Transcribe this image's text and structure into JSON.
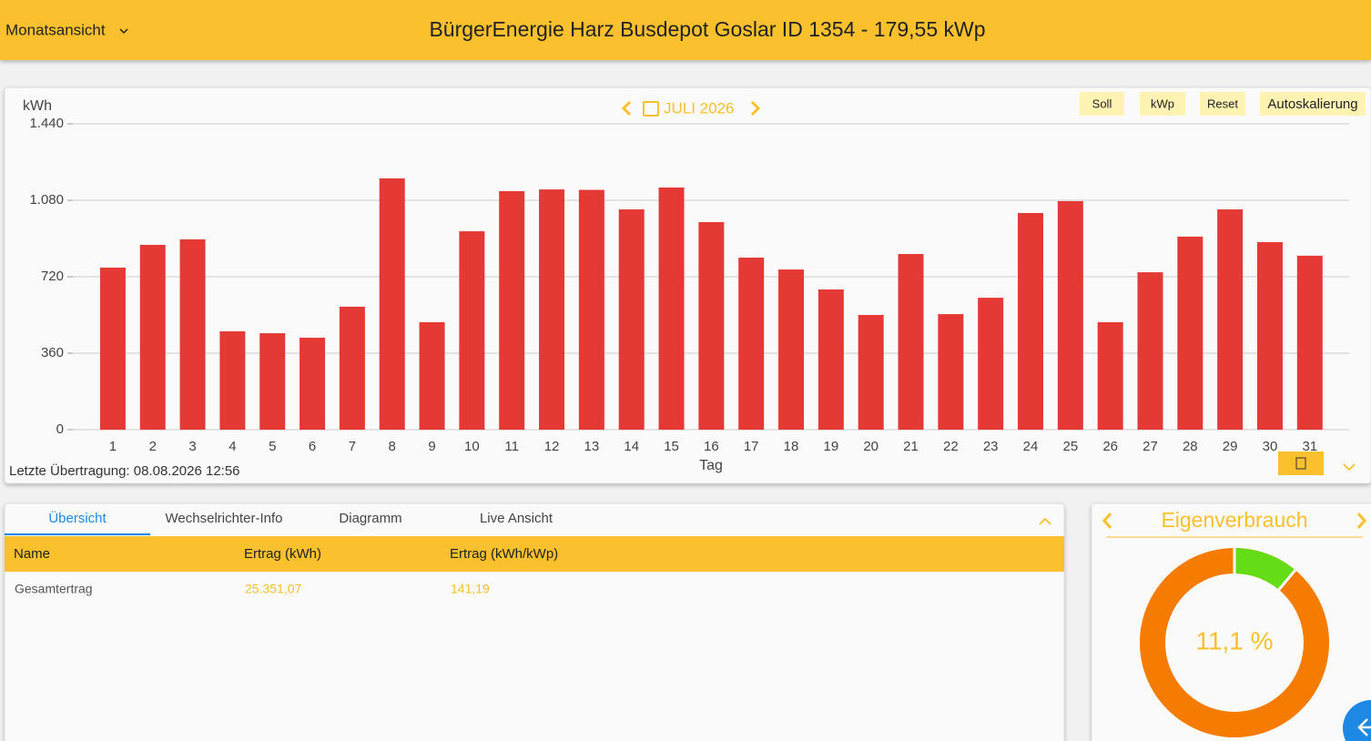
{
  "header": {
    "view_menu": "Monatsansicht",
    "title": "BürgerEnergie Harz Busdepot Goslar ID 1354 - 179,55 kWp"
  },
  "chart_toolbar": {
    "period": "JULI 2026",
    "buttons": [
      "Soll",
      "kWp",
      "Reset",
      "Autoskalierung"
    ]
  },
  "chart_data": [
    {
      "type": "bar",
      "y_label": "kWh",
      "x_label": "Tag",
      "categories": [
        "1",
        "2",
        "3",
        "4",
        "5",
        "6",
        "7",
        "8",
        "9",
        "10",
        "11",
        "12",
        "13",
        "14",
        "15",
        "16",
        "17",
        "18",
        "19",
        "20",
        "21",
        "22",
        "23",
        "24",
        "25",
        "26",
        "27",
        "28",
        "29",
        "30",
        "31"
      ],
      "values": [
        763,
        870,
        896,
        463,
        454,
        433,
        579,
        1183,
        506,
        934,
        1123,
        1131,
        1129,
        1037,
        1140,
        977,
        810,
        754,
        660,
        540,
        827,
        544,
        621,
        1020,
        1076,
        506,
        741,
        909,
        1037,
        883,
        819
      ],
      "color": "#e53935",
      "ylim": [
        0,
        1440
      ],
      "yticks": [
        0,
        360,
        720,
        {
          "value": 1080,
          "label": "1.080"
        },
        {
          "value": 1440,
          "label": "1.440"
        }
      ],
      "grid": true
    },
    {
      "type": "pie",
      "title": "Eigenverbrauch",
      "values": [
        11.1
      ],
      "value_labels": [
        "11,1 %"
      ],
      "color": "#64dd17",
      "track_color": "#f57c00"
    }
  ],
  "status": "Letzte Übertragung: 08.08.2026 12:56",
  "tabs": {
    "items": [
      "Übersicht",
      "Wechselrichter-Info",
      "Diagramm",
      "Live Ansicht"
    ],
    "active": 0
  },
  "table": {
    "columns": [
      "Name",
      "Ertrag (kWh)",
      "Ertrag (kWh/kWp)"
    ],
    "rows": [
      [
        "Gesamtertrag",
        "25.351,07",
        "141,19"
      ]
    ]
  }
}
